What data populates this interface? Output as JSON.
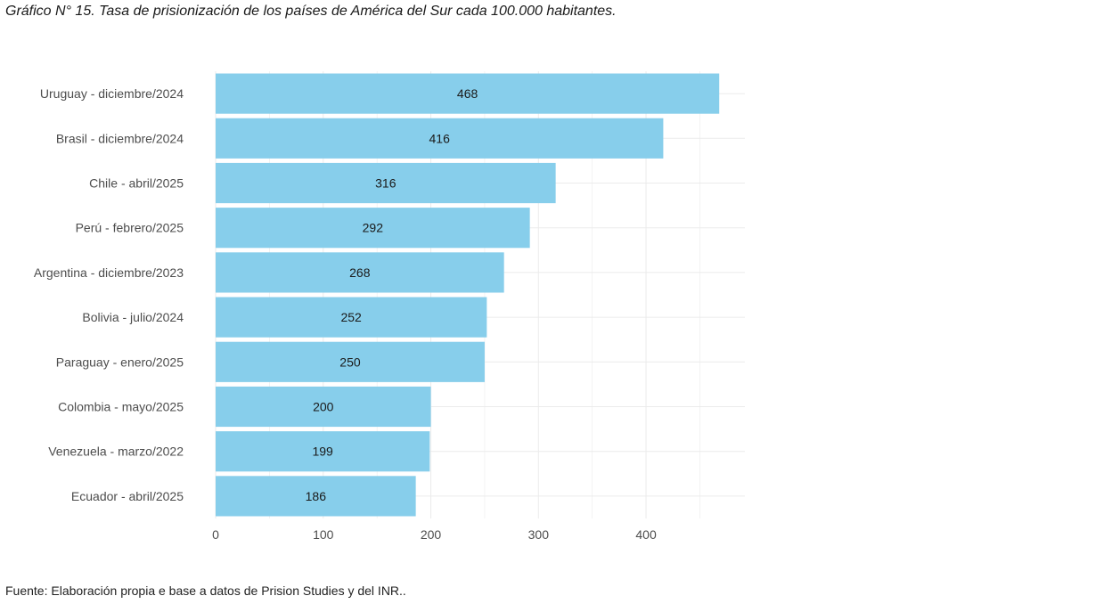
{
  "page": {
    "title": "Gráfico N° 15. Tasa de prisionización de los países de América del Sur cada 100.000 habitantes.",
    "source": "Fuente: Elaboración propia e base a datos de Prision Studies y del INR.."
  },
  "chart_data": {
    "type": "bar",
    "orientation": "horizontal",
    "categories": [
      "Uruguay - diciembre/2024",
      "Brasil - diciembre/2024",
      "Chile - abril/2025",
      "Perú - febrero/2025",
      "Argentina - diciembre/2023",
      "Bolivia - julio/2024",
      "Paraguay - enero/2025",
      "Colombia - mayo/2025",
      "Venezuela - marzo/2022",
      "Ecuador - abril/2025"
    ],
    "values": [
      468,
      416,
      316,
      292,
      268,
      252,
      250,
      200,
      199,
      186
    ],
    "xlim": [
      0,
      490
    ],
    "xticks": [
      0,
      100,
      200,
      300,
      400
    ],
    "grid": true,
    "legend": "none",
    "bar_color": "#87CEEB",
    "grid_color": "#ebebeb"
  }
}
